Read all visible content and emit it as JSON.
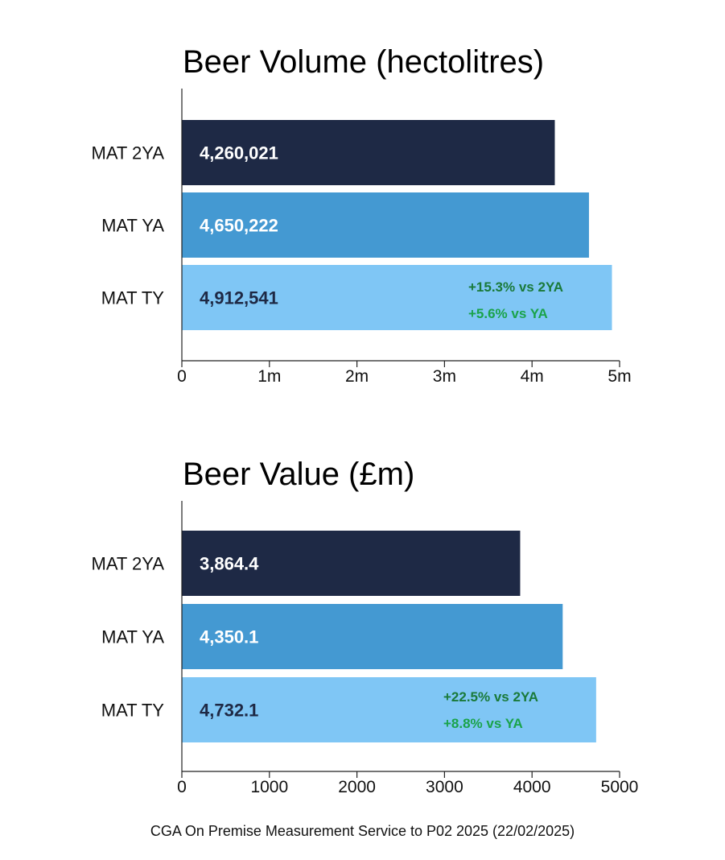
{
  "chart_data": [
    {
      "type": "bar",
      "orientation": "horizontal",
      "title": "Beer Volume (hectolitres)",
      "categories": [
        "MAT 2YA",
        "MAT YA",
        "MAT TY"
      ],
      "values": [
        4260021,
        4650222,
        4912541
      ],
      "value_labels": [
        "4,260,021",
        "4,650,222",
        "4,912,541"
      ],
      "xlim": [
        0,
        5000000
      ],
      "x_ticks": [
        0,
        1000000,
        2000000,
        3000000,
        4000000,
        5000000
      ],
      "x_tick_labels": [
        "0",
        "1m",
        "2m",
        "3m",
        "4m",
        "5m"
      ],
      "annotations": [
        "+15.3% vs 2YA",
        "+5.6% vs YA"
      ],
      "bar_colors": [
        "#1e2945",
        "#4499d2",
        "#7fc6f5"
      ],
      "value_label_colors": [
        "#ffffff",
        "#ffffff",
        "#1e2945"
      ],
      "annotation_colors": [
        "#1a7a3a",
        "#1aa34a"
      ],
      "grid": false
    },
    {
      "type": "bar",
      "orientation": "horizontal",
      "title": "Beer Value (£m)",
      "categories": [
        "MAT 2YA",
        "MAT YA",
        "MAT TY"
      ],
      "values": [
        3864.4,
        4350.1,
        4732.1
      ],
      "value_labels": [
        "3,864.4",
        "4,350.1",
        "4,732.1"
      ],
      "xlim": [
        0,
        5000
      ],
      "x_ticks": [
        0,
        1000,
        2000,
        3000,
        4000,
        5000
      ],
      "x_tick_labels": [
        "0",
        "1000",
        "2000",
        "3000",
        "4000",
        "5000"
      ],
      "annotations": [
        "+22.5% vs 2YA",
        "+8.8% vs YA"
      ],
      "bar_colors": [
        "#1e2945",
        "#4499d2",
        "#7fc6f5"
      ],
      "value_label_colors": [
        "#ffffff",
        "#ffffff",
        "#1e2945"
      ],
      "annotation_colors": [
        "#1a7a3a",
        "#1aa34a"
      ],
      "grid": false
    }
  ],
  "source": "CGA On Premise Measurement Service to P02 2025 (22/02/2025)"
}
